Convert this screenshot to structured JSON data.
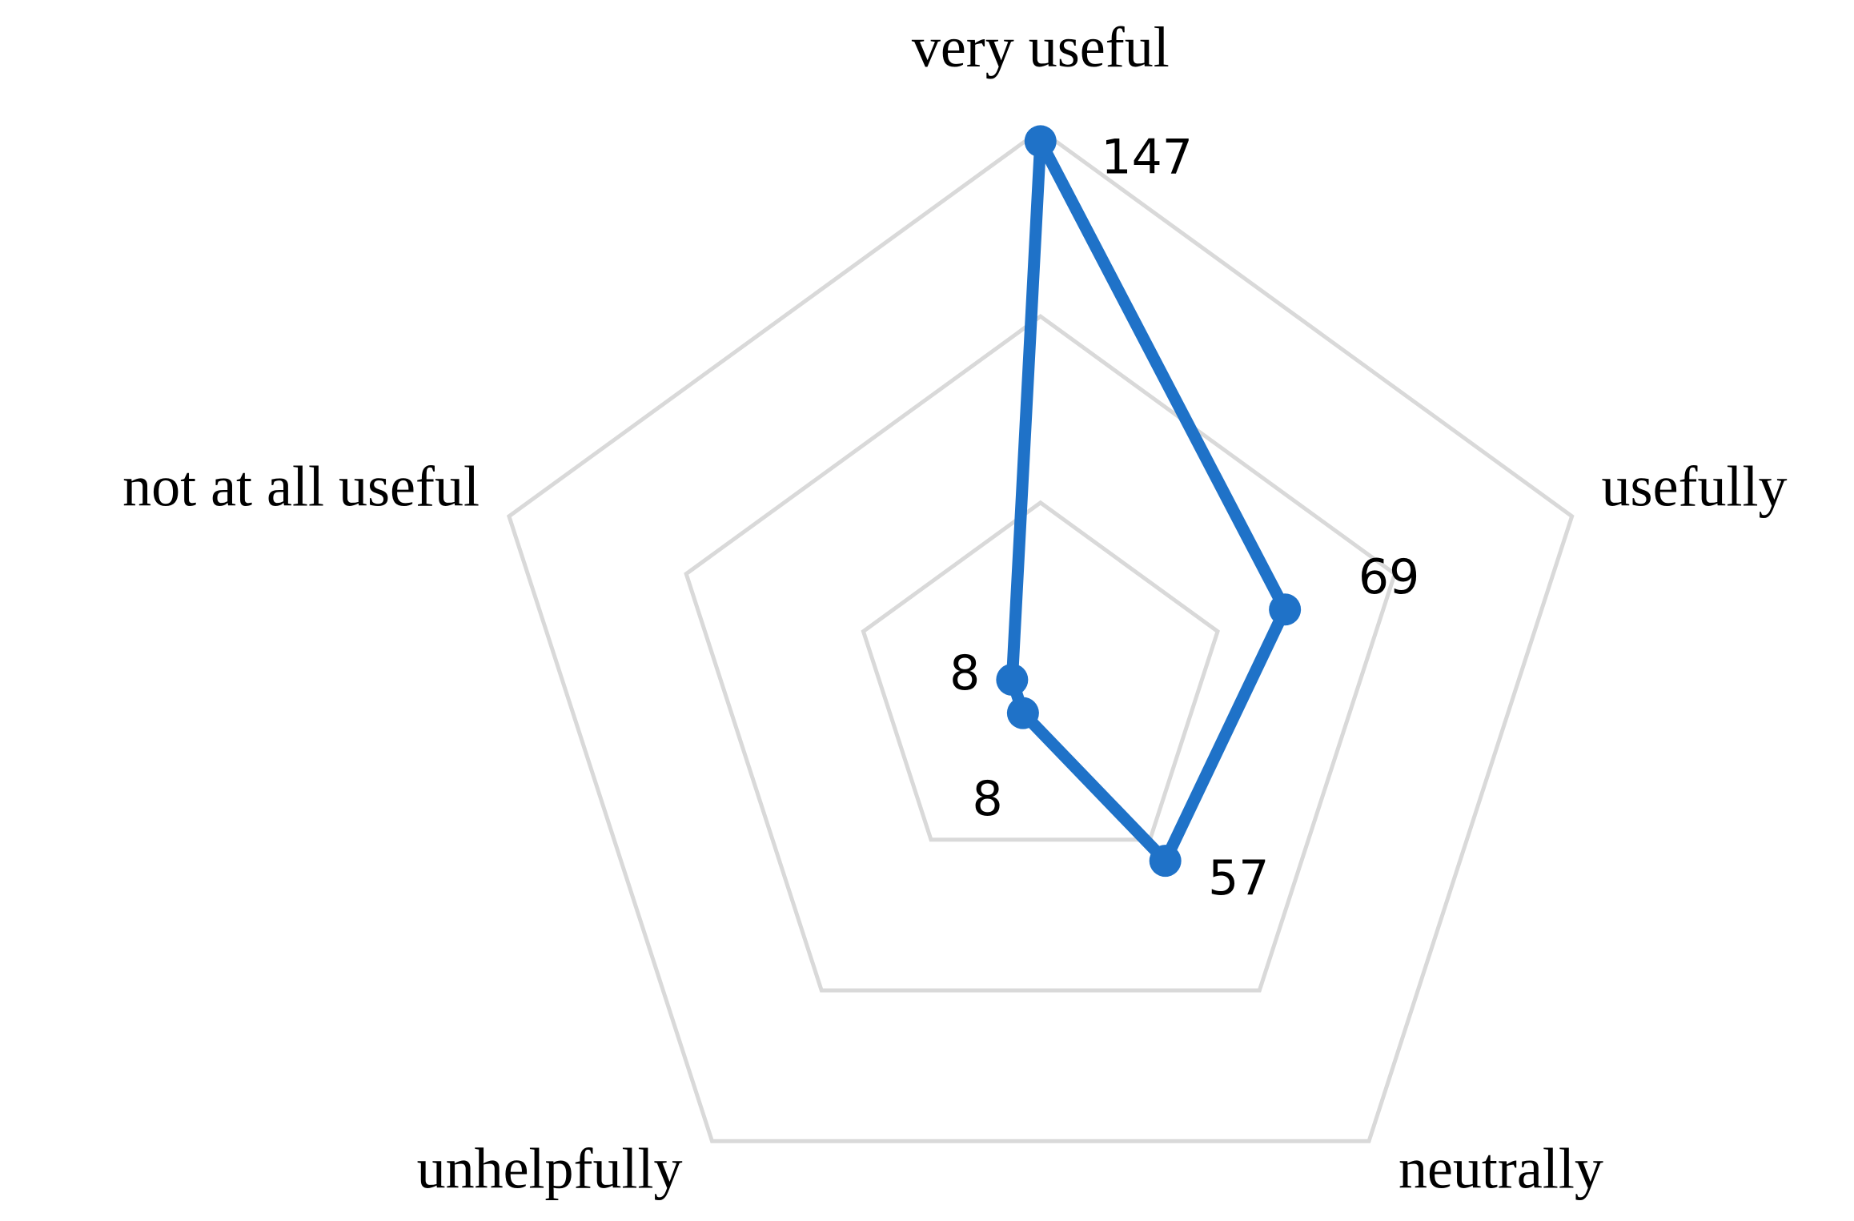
{
  "chart_data": {
    "type": "radar",
    "categories": [
      "very useful",
      "usefully",
      "neutrally",
      "unhelpfully",
      "not at all useful"
    ],
    "values": [
      147,
      69,
      57,
      8,
      8
    ],
    "color": "#1f72c8",
    "ylim": [
      0,
      150
    ],
    "yticks": [
      50,
      100,
      150
    ],
    "grid": true
  }
}
